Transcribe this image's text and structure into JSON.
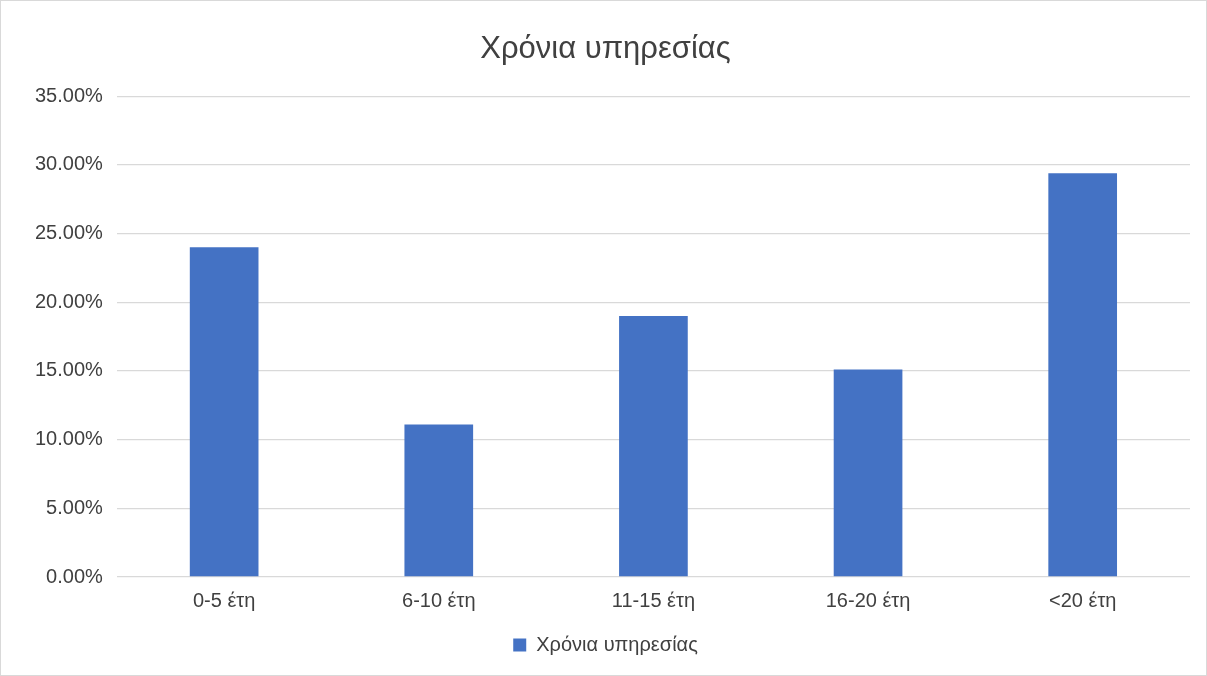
{
  "chart_data": {
    "type": "bar",
    "title": "Χρόνια υπηρεσίας",
    "categories": [
      "0-5 έτη",
      "6-10 έτη",
      "11-15 έτη",
      "16-20 έτη",
      "<20 έτη"
    ],
    "series": [
      {
        "name": "Χρόνια υπηρεσίας",
        "color": "#4472c4",
        "values": [
          24.0,
          11.1,
          19.0,
          15.1,
          29.4
        ]
      }
    ],
    "ylim": [
      0,
      35
    ],
    "yticks": [
      {
        "value": 0,
        "label": "0.00%"
      },
      {
        "value": 5,
        "label": "5.00%"
      },
      {
        "value": 10,
        "label": "10.00%"
      },
      {
        "value": 15,
        "label": "15.00%"
      },
      {
        "value": 20,
        "label": "20.00%"
      },
      {
        "value": 25,
        "label": "25.00%"
      },
      {
        "value": 30,
        "label": "30.00%"
      },
      {
        "value": 35,
        "label": "35.00%"
      }
    ],
    "grid": "y",
    "legend": "bottom"
  }
}
